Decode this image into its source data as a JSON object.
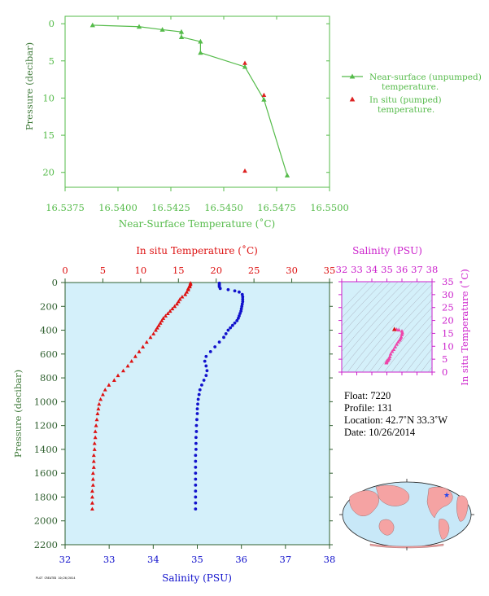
{
  "chart_data": [
    {
      "type": "scatter",
      "xlabel": "Near-Surface Temperature (˚C)",
      "ylabel": "Pressure (decibar)",
      "xlim": [
        16.5375,
        16.55
      ],
      "ylim": [
        22,
        -1
      ],
      "xticks": [
        "16.5375",
        "16.5400",
        "16.5425",
        "16.5450",
        "16.5475",
        "16.5500"
      ],
      "xtick_values": [
        16.5375,
        16.54,
        16.5425,
        16.545,
        16.5475,
        16.55
      ],
      "yticks": [
        "0",
        "5",
        "10",
        "15",
        "20"
      ],
      "ytick_values": [
        0,
        5,
        10,
        15,
        20
      ],
      "series": [
        {
          "name": "Near-surface (unpumped) temperature.",
          "color": "#55bb4a",
          "style": "line+triangle",
          "x": [
            16.5388,
            16.541,
            16.5421,
            16.543,
            16.543,
            16.5439,
            16.5439,
            16.546,
            16.5469,
            16.548
          ],
          "y": [
            0.2,
            0.4,
            0.8,
            1.1,
            1.8,
            2.4,
            3.9,
            5.8,
            10.2,
            20.4
          ]
        },
        {
          "name": "In situ (pumped) temperature.",
          "color": "#dd2222",
          "style": "triangle",
          "x": [
            16.546,
            16.5469,
            16.546
          ],
          "y": [
            5.3,
            9.6,
            19.8
          ]
        }
      ],
      "legend": "right"
    },
    {
      "type": "scatter",
      "xlabel_top": "In situ Temperature (˚C)",
      "xlabel_bottom": "Salinity (PSU)",
      "ylabel": "Pressure (decibar)",
      "temp_lim": [
        0,
        35
      ],
      "sal_lim": [
        32,
        38
      ],
      "ylim": [
        2200,
        0
      ],
      "temp_ticks": [
        "0",
        "5",
        "10",
        "15",
        "20",
        "25",
        "30",
        "35"
      ],
      "temp_tick_values": [
        0,
        5,
        10,
        15,
        20,
        25,
        30,
        35
      ],
      "sal_ticks": [
        "32",
        "33",
        "34",
        "35",
        "36",
        "37",
        "38"
      ],
      "sal_tick_values": [
        32,
        33,
        34,
        35,
        36,
        37,
        38
      ],
      "yticks": [
        "0",
        "200",
        "400",
        "600",
        "800",
        "1000",
        "1200",
        "1400",
        "1600",
        "1800",
        "2000",
        "2200"
      ],
      "ytick_values": [
        0,
        200,
        400,
        600,
        800,
        1000,
        1200,
        1400,
        1600,
        1800,
        2000,
        2200
      ],
      "temperature": {
        "color": "#dd1111",
        "pressure": [
          5,
          15,
          25,
          35,
          50,
          60,
          80,
          100,
          120,
          140,
          160,
          180,
          200,
          220,
          240,
          260,
          280,
          300,
          320,
          340,
          360,
          380,
          400,
          430,
          460,
          500,
          540,
          580,
          620,
          660,
          700,
          740,
          780,
          820,
          860,
          900,
          940,
          980,
          1020,
          1060,
          1100,
          1150,
          1200,
          1250,
          1300,
          1350,
          1400,
          1450,
          1500,
          1550,
          1600,
          1650,
          1700,
          1750,
          1800,
          1850,
          1900
        ],
        "values": [
          16.6,
          16.6,
          16.5,
          16.5,
          16.3,
          16.3,
          16.1,
          15.9,
          15.5,
          15.2,
          15.0,
          14.8,
          14.5,
          14.2,
          13.9,
          13.6,
          13.3,
          13.0,
          12.8,
          12.6,
          12.4,
          12.2,
          12.0,
          11.7,
          11.3,
          10.8,
          10.3,
          9.8,
          9.3,
          8.8,
          8.3,
          7.7,
          7.0,
          6.5,
          5.8,
          5.3,
          5.0,
          4.7,
          4.5,
          4.4,
          4.3,
          4.2,
          4.1,
          4.0,
          4.0,
          3.9,
          3.9,
          3.8,
          3.8,
          3.8,
          3.7,
          3.7,
          3.7,
          3.6,
          3.6,
          3.6,
          3.6
        ]
      },
      "salinity": {
        "color": "#1111cc",
        "pressure": [
          5,
          15,
          25,
          35,
          50,
          60,
          70,
          80,
          100,
          120,
          140,
          160,
          180,
          200,
          220,
          240,
          260,
          280,
          300,
          320,
          340,
          360,
          380,
          400,
          430,
          460,
          500,
          540,
          580,
          620,
          660,
          700,
          740,
          780,
          820,
          860,
          900,
          940,
          980,
          1020,
          1060,
          1100,
          1150,
          1200,
          1250,
          1300,
          1350,
          1400,
          1450,
          1500,
          1550,
          1600,
          1650,
          1700,
          1750,
          1800,
          1850,
          1900
        ],
        "values": [
          35.5,
          35.5,
          35.5,
          35.5,
          35.52,
          35.7,
          35.85,
          35.95,
          36.02,
          36.03,
          36.03,
          36.03,
          36.02,
          36.01,
          36.0,
          35.99,
          35.97,
          35.95,
          35.93,
          35.9,
          35.85,
          35.8,
          35.75,
          35.7,
          35.65,
          35.6,
          35.5,
          35.4,
          35.3,
          35.2,
          35.17,
          35.2,
          35.22,
          35.2,
          35.15,
          35.1,
          35.06,
          35.04,
          35.02,
          35.01,
          35.0,
          35.0,
          34.99,
          34.98,
          34.98,
          34.97,
          34.97,
          34.97,
          34.96,
          34.96,
          34.96,
          34.96,
          34.96,
          34.96,
          34.96,
          34.96,
          34.96,
          34.96
        ]
      }
    },
    {
      "type": "scatter",
      "xlabel": "Salinity (PSU)",
      "ylabel": "In situ Temperature (˚C)",
      "xlim": [
        32,
        38
      ],
      "ylim": [
        0,
        35
      ],
      "xticks": [
        "32",
        "33",
        "34",
        "35",
        "36",
        "37",
        "38"
      ],
      "xtick_values": [
        32,
        33,
        34,
        35,
        36,
        37,
        38
      ],
      "yticks": [
        "0",
        "5",
        "10",
        "15",
        "20",
        "25",
        "30",
        "35"
      ],
      "ytick_values": [
        0,
        5,
        10,
        15,
        20,
        25,
        30,
        35
      ],
      "color": "#ee44aa",
      "x": [
        35.5,
        35.65,
        35.8,
        36.0,
        36.03,
        36.0,
        35.95,
        35.9,
        35.85,
        35.75,
        35.65,
        35.55,
        35.45,
        35.35,
        35.25,
        35.2,
        35.15,
        35.1,
        35.05,
        35.0,
        34.98,
        34.97,
        34.96
      ],
      "y": [
        16.6,
        16.5,
        16.3,
        15.9,
        15.2,
        14.5,
        13.6,
        13.0,
        12.4,
        11.7,
        10.8,
        9.8,
        8.8,
        8.0,
        7.0,
        6.0,
        5.3,
        4.8,
        4.5,
        4.3,
        4.0,
        3.8,
        3.6
      ],
      "grid": "density contours"
    }
  ],
  "float_info": {
    "float": "Float:  7220",
    "profile": "Profile:  131",
    "location": "Location:  42.7˚N  33.3˚W",
    "date": "Date:  10/26/2014"
  },
  "map": {
    "marker_color": "#2244ee",
    "land_color": "#f5a3a3",
    "ocean_color": "#c8e8f8"
  },
  "stamp": "PLOT CREATED 10/26/2014",
  "colors": {
    "green": "#55bb4a",
    "red": "#dd1111",
    "blue": "#1111cc",
    "magenta": "#cc22cc",
    "plot_bg": "#d4f0fa"
  }
}
